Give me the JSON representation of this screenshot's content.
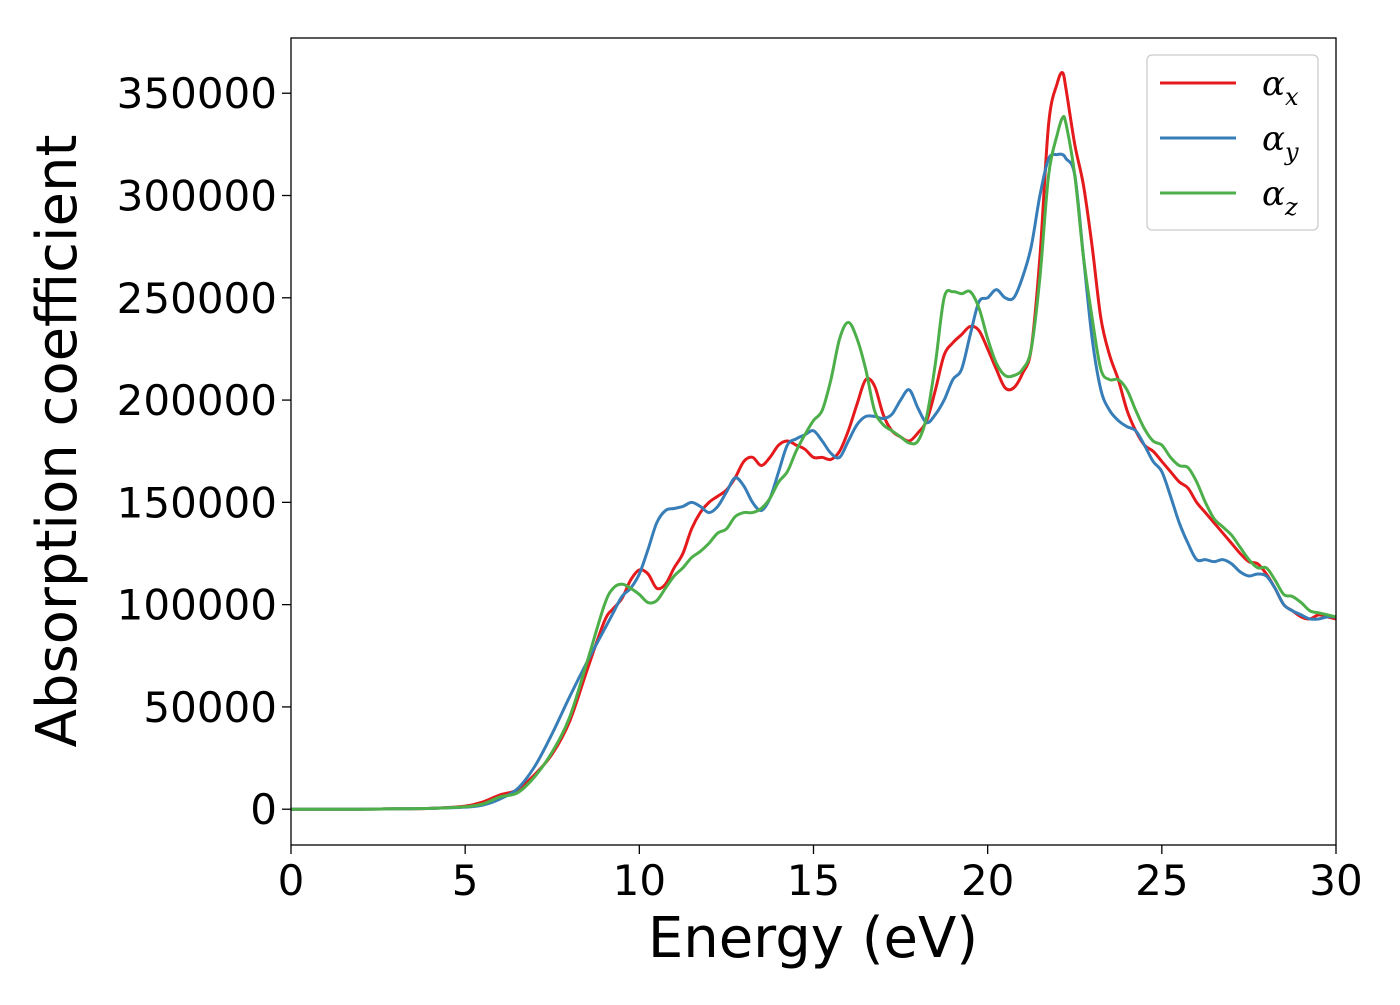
{
  "chart_data": {
    "type": "line",
    "title": "",
    "xlabel": "Energy (eV)",
    "ylabel": "Absorption coefficient",
    "xlim": [
      0,
      30
    ],
    "ylim": [
      -17500,
      377000
    ],
    "xticks": [
      0,
      5,
      10,
      15,
      20,
      25,
      30
    ],
    "yticks": [
      0,
      50000,
      100000,
      150000,
      200000,
      250000,
      300000,
      350000
    ],
    "grid": false,
    "legend_position": "top-right",
    "x": [
      0,
      1,
      2,
      3,
      4,
      5,
      5.5,
      6,
      6.5,
      7,
      7.5,
      8,
      8.5,
      9,
      9.25,
      9.5,
      9.75,
      10,
      10.25,
      10.5,
      10.75,
      11,
      11.25,
      11.5,
      11.75,
      12,
      12.25,
      12.5,
      12.75,
      13,
      13.25,
      13.5,
      13.75,
      14,
      14.25,
      14.5,
      14.75,
      15,
      15.25,
      15.5,
      15.75,
      16,
      16.25,
      16.5,
      16.75,
      17,
      17.25,
      17.5,
      17.75,
      18,
      18.25,
      18.5,
      18.75,
      19,
      19.25,
      19.5,
      19.75,
      20,
      20.25,
      20.5,
      20.75,
      21,
      21.25,
      21.5,
      21.75,
      22,
      22.15,
      22.25,
      22.5,
      22.75,
      23,
      23.25,
      23.5,
      23.75,
      24,
      24.25,
      24.5,
      24.75,
      25,
      25.25,
      25.5,
      25.75,
      26,
      26.25,
      26.5,
      26.75,
      27,
      27.25,
      27.5,
      27.75,
      28,
      28.25,
      28.5,
      28.75,
      29,
      29.25,
      29.5,
      29.75,
      30
    ],
    "series": [
      {
        "name": "α",
        "subscript": "x",
        "color": "#e41a1c",
        "values": [
          0,
          0,
          0,
          200,
          400,
          1500,
          3500,
          7000,
          9500,
          17000,
          27000,
          43000,
          68000,
          92000,
          98000,
          103000,
          112000,
          117000,
          115000,
          108000,
          110000,
          118000,
          125000,
          137000,
          145000,
          150000,
          153000,
          156000,
          162000,
          170000,
          172000,
          168000,
          172000,
          178000,
          180000,
          178000,
          176000,
          172000,
          172000,
          171000,
          175000,
          185000,
          198000,
          210000,
          207000,
          193000,
          185000,
          182000,
          180000,
          184000,
          190000,
          205000,
          222000,
          228000,
          232000,
          236000,
          234000,
          225000,
          215000,
          206000,
          206000,
          213000,
          225000,
          270000,
          335000,
          355000,
          360000,
          352000,
          325000,
          305000,
          275000,
          240000,
          222000,
          210000,
          195000,
          185000,
          178000,
          175000,
          170000,
          165000,
          160000,
          157000,
          150000,
          145000,
          140000,
          135000,
          130000,
          125000,
          121000,
          120000,
          115000,
          108000,
          100000,
          97000,
          94000,
          93000,
          95000,
          94000,
          93000
        ]
      },
      {
        "name": "α",
        "subscript": "y",
        "color": "#377eb8",
        "values": [
          0,
          0,
          0,
          200,
          400,
          1000,
          2000,
          5000,
          10000,
          21000,
          37000,
          55000,
          72000,
          88000,
          96000,
          104000,
          108000,
          115000,
          127000,
          140000,
          146000,
          147000,
          148000,
          150000,
          148000,
          145000,
          148000,
          155000,
          162000,
          158000,
          150000,
          146000,
          152000,
          165000,
          178000,
          181000,
          183000,
          185000,
          180000,
          174000,
          172000,
          180000,
          188000,
          192000,
          192000,
          191000,
          193000,
          200000,
          205000,
          196000,
          189000,
          193000,
          200000,
          210000,
          215000,
          232000,
          248000,
          250000,
          254000,
          250000,
          250000,
          260000,
          275000,
          300000,
          318000,
          320000,
          320000,
          318000,
          310000,
          270000,
          230000,
          205000,
          195000,
          190000,
          187000,
          185000,
          178000,
          170000,
          165000,
          153000,
          140000,
          130000,
          122000,
          122000,
          121000,
          122000,
          120000,
          116000,
          114000,
          115000,
          114000,
          108000,
          100000,
          97000,
          95000,
          93000,
          93000,
          94000,
          94000
        ]
      },
      {
        "name": "α",
        "subscript": "z",
        "color": "#4daf4a",
        "values": [
          0,
          0,
          0,
          200,
          400,
          1200,
          2500,
          6000,
          8000,
          16000,
          28000,
          45000,
          72000,
          100000,
          108000,
          110000,
          108000,
          105000,
          101000,
          102000,
          108000,
          114000,
          118000,
          123000,
          126000,
          130000,
          135000,
          137000,
          143000,
          145000,
          145000,
          147000,
          152000,
          160000,
          165000,
          175000,
          183000,
          190000,
          195000,
          210000,
          230000,
          238000,
          230000,
          215000,
          195000,
          188000,
          185000,
          182000,
          179000,
          180000,
          192000,
          218000,
          250000,
          253000,
          252000,
          253000,
          245000,
          230000,
          218000,
          212000,
          212000,
          215000,
          225000,
          260000,
          310000,
          330000,
          338000,
          335000,
          310000,
          270000,
          240000,
          215000,
          210000,
          210000,
          205000,
          195000,
          186000,
          180000,
          178000,
          172000,
          168000,
          167000,
          160000,
          150000,
          142000,
          138000,
          134000,
          128000,
          122000,
          118000,
          118000,
          112000,
          105000,
          104000,
          101000,
          97000,
          96000,
          95000,
          94000
        ]
      }
    ]
  }
}
